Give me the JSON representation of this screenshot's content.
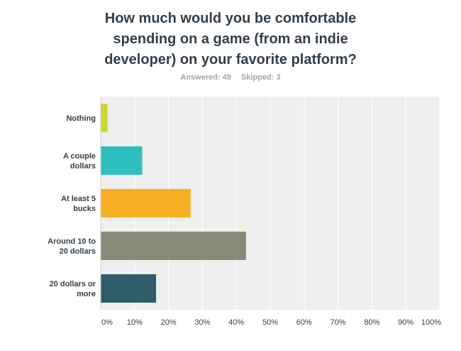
{
  "title": "How much would you be comfortable\nspending on a game (from an indie\ndeveloper) on your favorite platform?",
  "answered_label": "Answered: 49",
  "skipped_label": "Skipped: 3",
  "chart_data": {
    "type": "bar",
    "orientation": "horizontal",
    "categories": [
      [
        "Nothing"
      ],
      [
        "A couple",
        "dollars"
      ],
      [
        "At least 5",
        "bucks"
      ],
      [
        "Around 10 to",
        "20 dollars"
      ],
      [
        "20 dollars or",
        "more"
      ]
    ],
    "values": [
      2.04,
      12.24,
      26.53,
      42.86,
      16.33
    ],
    "colors": [
      "#cfd637",
      "#2ebfbe",
      "#f6ae22",
      "#898979",
      "#2f5d6a"
    ],
    "xlim": [
      0,
      100
    ],
    "xticks": [
      0,
      10,
      20,
      30,
      40,
      50,
      60,
      70,
      80,
      90,
      100
    ],
    "xtick_labels": [
      "0%",
      "10%",
      "20%",
      "30%",
      "40%",
      "50%",
      "60%",
      "70%",
      "80%",
      "90%",
      "100%"
    ],
    "grid": true,
    "background": "#efefef",
    "gridline_color": "#ffffff"
  }
}
